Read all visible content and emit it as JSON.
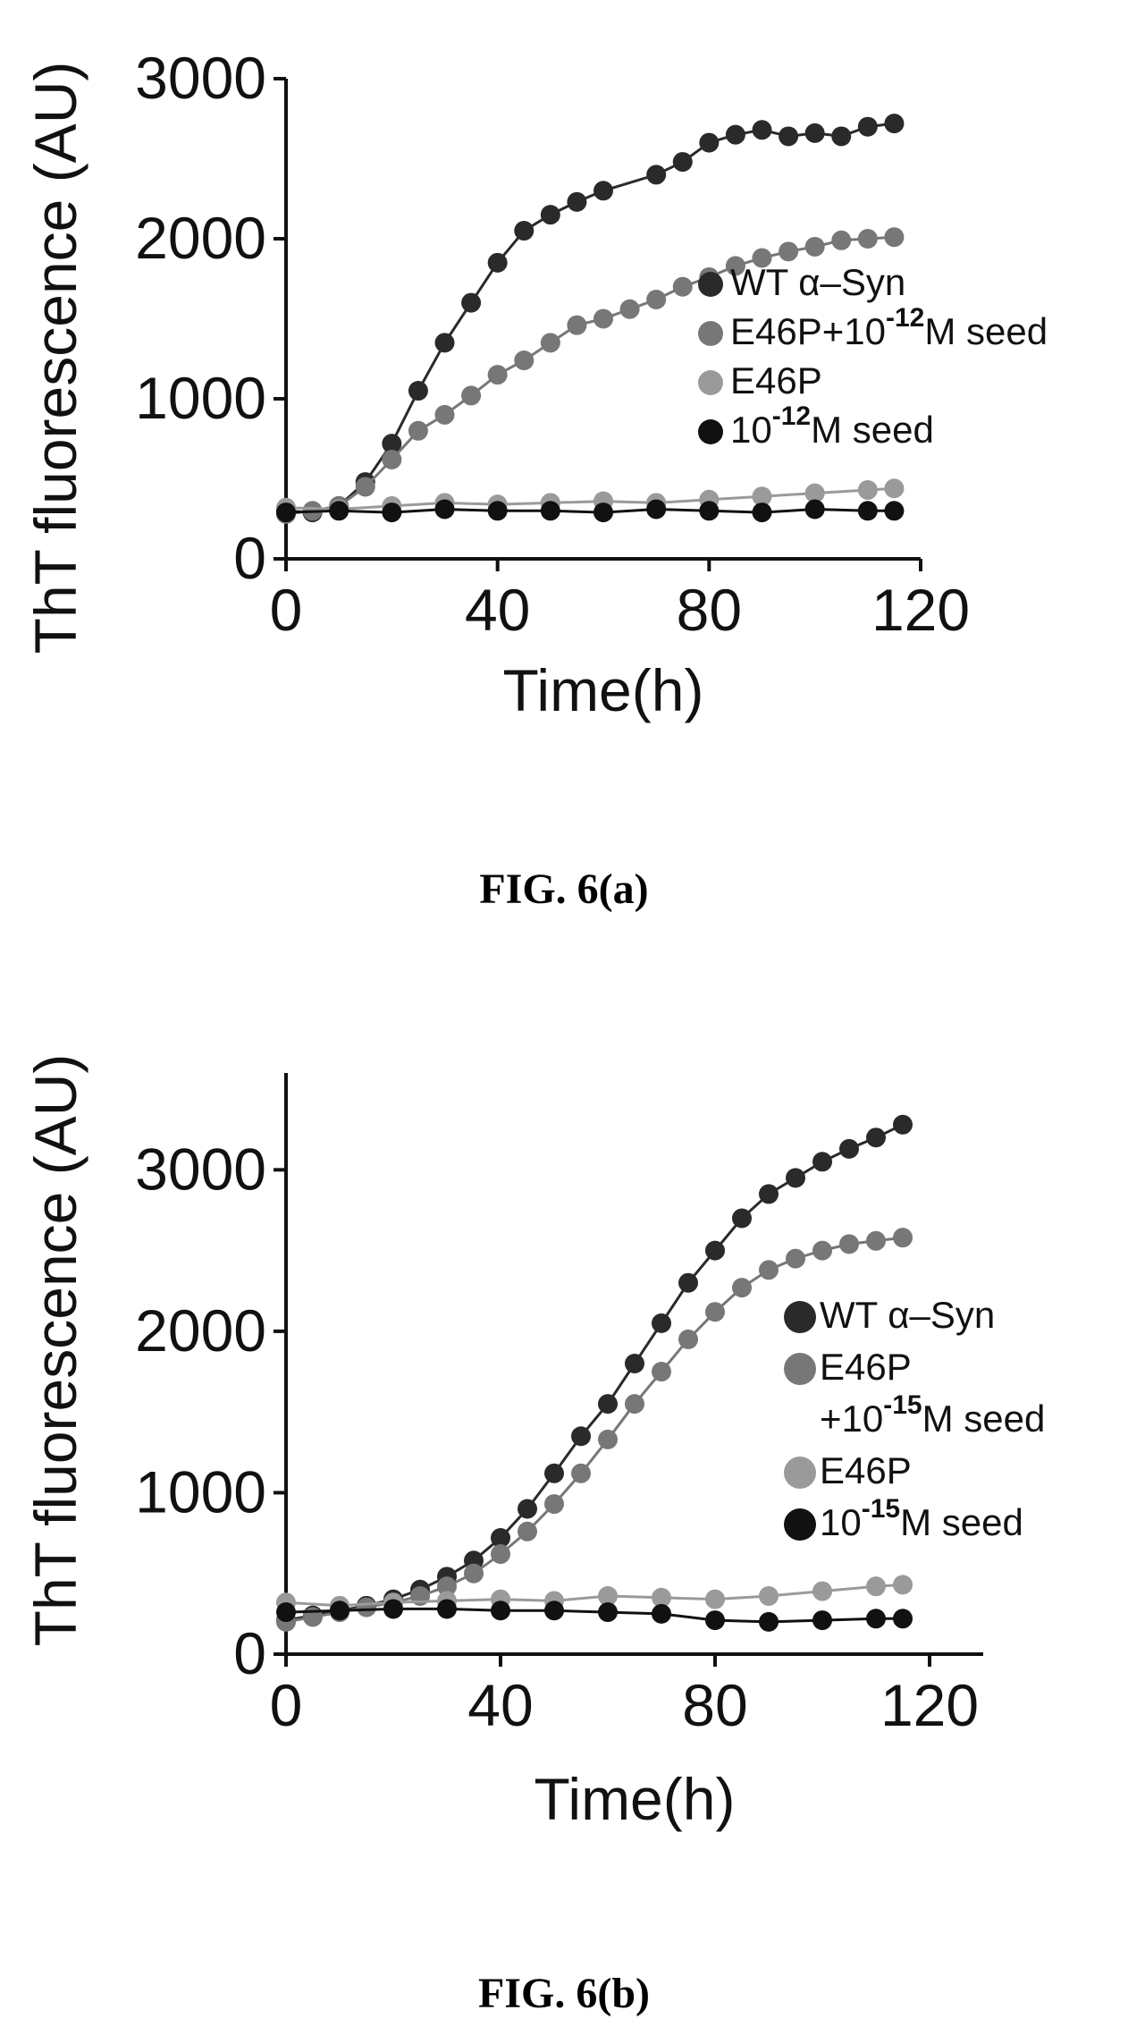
{
  "chart_data": [
    {
      "type": "scatter",
      "caption": "FIG. 6(a)",
      "xlabel": "Time(h)",
      "ylabel": "ThT fluorescence (AU)",
      "xlim": [
        0,
        120
      ],
      "ylim": [
        0,
        3000
      ],
      "x_ticks": [
        "0",
        "40",
        "80",
        "120"
      ],
      "y_ticks": [
        "0",
        "1000",
        "2000",
        "3000"
      ],
      "legend_position": "right",
      "series": [
        {
          "name": "WT α–Syn",
          "label_parts": [
            "WT α–Syn"
          ],
          "color": "#2a2a2a",
          "x": [
            0,
            5,
            10,
            15,
            20,
            25,
            30,
            35,
            40,
            45,
            50,
            55,
            60,
            70,
            75,
            80,
            85,
            90,
            95,
            100,
            105,
            110,
            115
          ],
          "y": [
            300,
            290,
            330,
            480,
            720,
            1050,
            1350,
            1600,
            1850,
            2050,
            2150,
            2230,
            2300,
            2400,
            2480,
            2600,
            2650,
            2680,
            2640,
            2660,
            2640,
            2700,
            2720
          ]
        },
        {
          "name": "E46P+10-12M seed",
          "label_parts": [
            "E46P+10",
            "-12",
            "M seed"
          ],
          "color": "#777777",
          "x": [
            0,
            5,
            10,
            15,
            20,
            25,
            30,
            35,
            40,
            45,
            50,
            55,
            60,
            65,
            70,
            75,
            80,
            85,
            90,
            95,
            100,
            105,
            110,
            115
          ],
          "y": [
            280,
            300,
            330,
            450,
            620,
            800,
            900,
            1020,
            1150,
            1240,
            1350,
            1460,
            1500,
            1560,
            1620,
            1700,
            1760,
            1830,
            1880,
            1920,
            1950,
            1990,
            2000,
            2010
          ]
        },
        {
          "name": "E46P",
          "label_parts": [
            "E46P"
          ],
          "color": "#9a9a9a",
          "x": [
            0,
            10,
            20,
            30,
            40,
            50,
            60,
            70,
            80,
            90,
            100,
            110,
            115
          ],
          "y": [
            320,
            310,
            330,
            350,
            340,
            350,
            360,
            350,
            370,
            390,
            410,
            430,
            440
          ]
        },
        {
          "name": "10-12M seed",
          "label_parts": [
            "10",
            "-12",
            "M seed"
          ],
          "color": "#111111",
          "x": [
            0,
            10,
            20,
            30,
            40,
            50,
            60,
            70,
            80,
            90,
            100,
            110,
            115
          ],
          "y": [
            290,
            300,
            290,
            310,
            300,
            300,
            290,
            310,
            300,
            290,
            310,
            300,
            300
          ]
        }
      ]
    },
    {
      "type": "scatter",
      "caption": "FIG. 6(b)",
      "xlabel": "Time(h)",
      "ylabel": "ThT fluorescence (AU)",
      "xlim": [
        0,
        130
      ],
      "ylim": [
        0,
        3600
      ],
      "x_ticks": [
        "0",
        "40",
        "80",
        "120"
      ],
      "y_ticks": [
        "0",
        "1000",
        "2000",
        "3000"
      ],
      "legend_position": "right",
      "series": [
        {
          "name": "WT α–Syn",
          "label_parts": [
            "WT α–Syn"
          ],
          "color": "#2a2a2a",
          "x": [
            0,
            5,
            10,
            15,
            20,
            25,
            30,
            35,
            40,
            45,
            50,
            55,
            60,
            65,
            70,
            75,
            80,
            85,
            90,
            95,
            100,
            105,
            110,
            115
          ],
          "y": [
            210,
            240,
            270,
            300,
            340,
            400,
            480,
            580,
            720,
            900,
            1120,
            1350,
            1550,
            1800,
            2050,
            2300,
            2500,
            2700,
            2850,
            2950,
            3050,
            3130,
            3200,
            3280
          ]
        },
        {
          "name": "E46P +10-15M seed",
          "label_parts": [
            "E46P",
            "+10",
            "-15",
            "M seed"
          ],
          "color": "#777777",
          "x": [
            0,
            5,
            10,
            15,
            20,
            25,
            30,
            35,
            40,
            45,
            50,
            55,
            60,
            65,
            70,
            75,
            80,
            85,
            90,
            95,
            100,
            105,
            110,
            115
          ],
          "y": [
            200,
            230,
            260,
            290,
            320,
            360,
            420,
            500,
            620,
            760,
            930,
            1120,
            1330,
            1550,
            1750,
            1950,
            2120,
            2270,
            2380,
            2450,
            2500,
            2540,
            2560,
            2580
          ]
        },
        {
          "name": "E46P",
          "label_parts": [
            "E46P"
          ],
          "color": "#9a9a9a",
          "x": [
            0,
            10,
            20,
            30,
            40,
            50,
            60,
            70,
            80,
            90,
            100,
            110,
            115
          ],
          "y": [
            320,
            300,
            320,
            330,
            340,
            330,
            360,
            350,
            340,
            360,
            390,
            420,
            430
          ]
        },
        {
          "name": "10-15M seed",
          "label_parts": [
            "10",
            "-15",
            "M seed"
          ],
          "color": "#111111",
          "x": [
            0,
            10,
            20,
            30,
            40,
            50,
            60,
            70,
            80,
            90,
            100,
            110,
            115
          ],
          "y": [
            260,
            270,
            280,
            280,
            270,
            270,
            260,
            250,
            210,
            200,
            210,
            220,
            220
          ]
        }
      ]
    }
  ]
}
